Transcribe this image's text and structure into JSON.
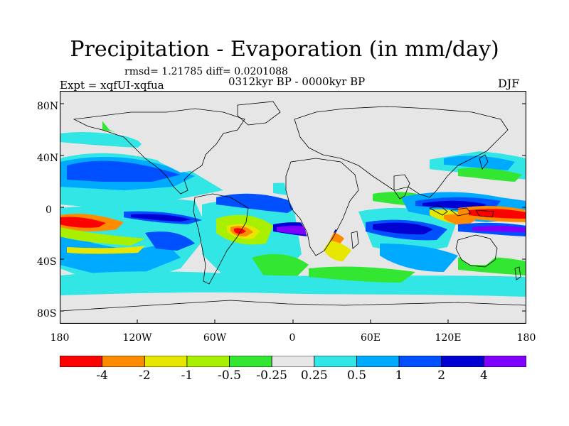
{
  "title": "Precipitation - Evaporation (in mm/day)",
  "stats": "rmsd= 1.21785 diff= 0.0201088",
  "experiment": "Expt = xqfUI-xqfua",
  "period": "0312kyr BP - 0000kyr BP",
  "season": "DJF",
  "y_axis": {
    "labels": [
      "80N",
      "40N",
      "0",
      "40S",
      "80S"
    ]
  },
  "x_axis": {
    "labels": [
      "180",
      "120W",
      "60W",
      "0",
      "60E",
      "120E",
      "180"
    ]
  },
  "colorbar": {
    "colors": [
      "#ff0000",
      "#ff8c00",
      "#e6e600",
      "#a8f000",
      "#32e632",
      "#e6e6e6",
      "#33e6e6",
      "#00aaff",
      "#0050ff",
      "#0000d2",
      "#7f00ff"
    ],
    "labels": [
      "-4",
      "-2",
      "-1",
      "-0.5",
      "-0.25",
      "0.25",
      "0.5",
      "1",
      "2",
      "4"
    ]
  },
  "map_colors": {
    "land": "#e6e6e6",
    "coast": "#000000"
  }
}
